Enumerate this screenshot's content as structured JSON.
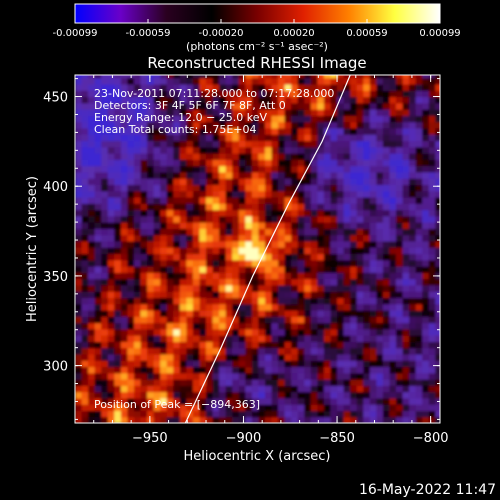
{
  "colorbar": {
    "ticks": [
      "-0.00099",
      "-0.00059",
      "-0.00020",
      "0.00020",
      "0.00059",
      "0.00099"
    ],
    "units": "(photons cm⁻² s⁻¹ asec⁻²)",
    "stops": [
      "#0000ff",
      "#6a00c8",
      "#2a0020",
      "#000000",
      "#7a0000",
      "#e02000",
      "#ff8000",
      "#ffff40",
      "#ffffff"
    ]
  },
  "chart_data": {
    "type": "heatmap",
    "title": "Reconstructed RHESSI Image",
    "xlabel": "Heliocentric X (arcsec)",
    "ylabel": "Heliocentric Y (arcsec)",
    "xlim": [
      -990,
      -795
    ],
    "ylim": [
      268,
      462
    ],
    "xticks": [
      -950,
      -900,
      -850,
      -800
    ],
    "yticks": [
      300,
      350,
      400,
      450
    ],
    "xtick_labels": [
      "−950",
      "−900",
      "−850",
      "−800"
    ],
    "ytick_labels": [
      "300",
      "350",
      "400",
      "450"
    ],
    "info_lines": [
      "23-Nov-2011 07:11:28.000 to 07:17:28.000",
      "Detectors: 3F 4F 5F 6F 7F 8F, Att 0",
      "Energy Range: 12.0 − 25.0 keV",
      "Clean     Total counts: 1.75E+04"
    ],
    "peak_label": "Position of Peak = [−894,363]",
    "peak": [
      -894,
      363
    ],
    "limb_curve": [
      [
        -931,
        268
      ],
      [
        -912,
        310
      ],
      [
        -895,
        350
      ],
      [
        -876,
        390
      ],
      [
        -858,
        425
      ],
      [
        -843,
        462
      ]
    ]
  },
  "footer": {
    "date": "16-May-2022 11:47"
  }
}
